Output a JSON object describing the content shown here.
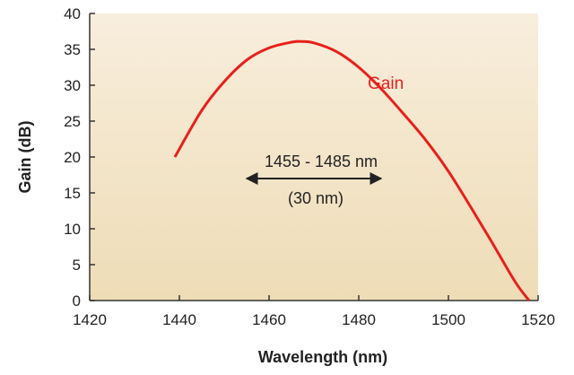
{
  "colors": {
    "plot_bg_top": "#f8eedd",
    "plot_bg_bottom": "#eedcb6",
    "axis": "#333333",
    "gain_line": "#e8201c",
    "text": "#222222"
  },
  "chart_data": {
    "type": "line",
    "xlabel": "Wavelength (nm)",
    "ylabel": "Gain (dB)",
    "xlim": [
      1420,
      1520
    ],
    "ylim": [
      0,
      40
    ],
    "x_ticks": [
      "1420",
      "1440",
      "1460",
      "1480",
      "1500",
      "1520"
    ],
    "y_ticks": [
      "0",
      "5",
      "10",
      "15",
      "20",
      "25",
      "30",
      "35",
      "40"
    ],
    "grid": false,
    "series": [
      {
        "name": "Gain",
        "x": [
          1439,
          1445,
          1450,
          1455,
          1460,
          1465,
          1467,
          1470,
          1475,
          1480,
          1485,
          1490,
          1495,
          1500,
          1505,
          1510,
          1515,
          1518
        ],
        "y": [
          20,
          26.5,
          30.5,
          33.5,
          35.2,
          36.0,
          36.1,
          35.9,
          34.7,
          32.5,
          29.5,
          26.0,
          22.3,
          18.0,
          13.0,
          7.8,
          2.5,
          0
        ]
      }
    ],
    "annotation": {
      "range_text": "1455 - 1485 nm",
      "width_text": "(30 nm)",
      "arrow_from": 1455,
      "arrow_to": 1485,
      "arrow_y": 17.0
    }
  }
}
